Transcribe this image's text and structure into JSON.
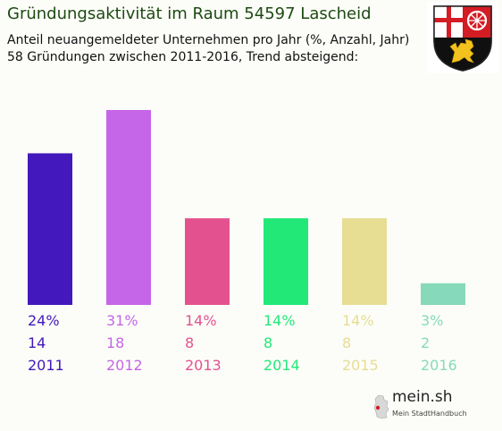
{
  "title": "Gründungsaktivität im Raum 54597 Lascheid",
  "subtitle_line1": "Anteil neuangemeldeter Unternehmen pro Jahr (%, Anzahl, Jahr)",
  "subtitle_line2": "58 Gründungen zwischen 2011-2016, Trend absteigend:",
  "crest_icon": "rhineland-palatinate-coat-of-arms-icon",
  "brand": {
    "name": "mein.sh",
    "tagline": "Mein StadtHandbuch",
    "icon": "germany-map-icon"
  },
  "chart_data": {
    "type": "bar",
    "categories": [
      "2011",
      "2012",
      "2013",
      "2014",
      "2015",
      "2016"
    ],
    "percent_labels": [
      "24%",
      "31%",
      "14%",
      "14%",
      "14%",
      "3%"
    ],
    "values": [
      14,
      18,
      8,
      8,
      8,
      2
    ],
    "colors": [
      "#4318bc",
      "#c566e8",
      "#e3528f",
      "#22e878",
      "#e7dd93",
      "#86dabb"
    ],
    "grid": false,
    "legend": "none"
  }
}
